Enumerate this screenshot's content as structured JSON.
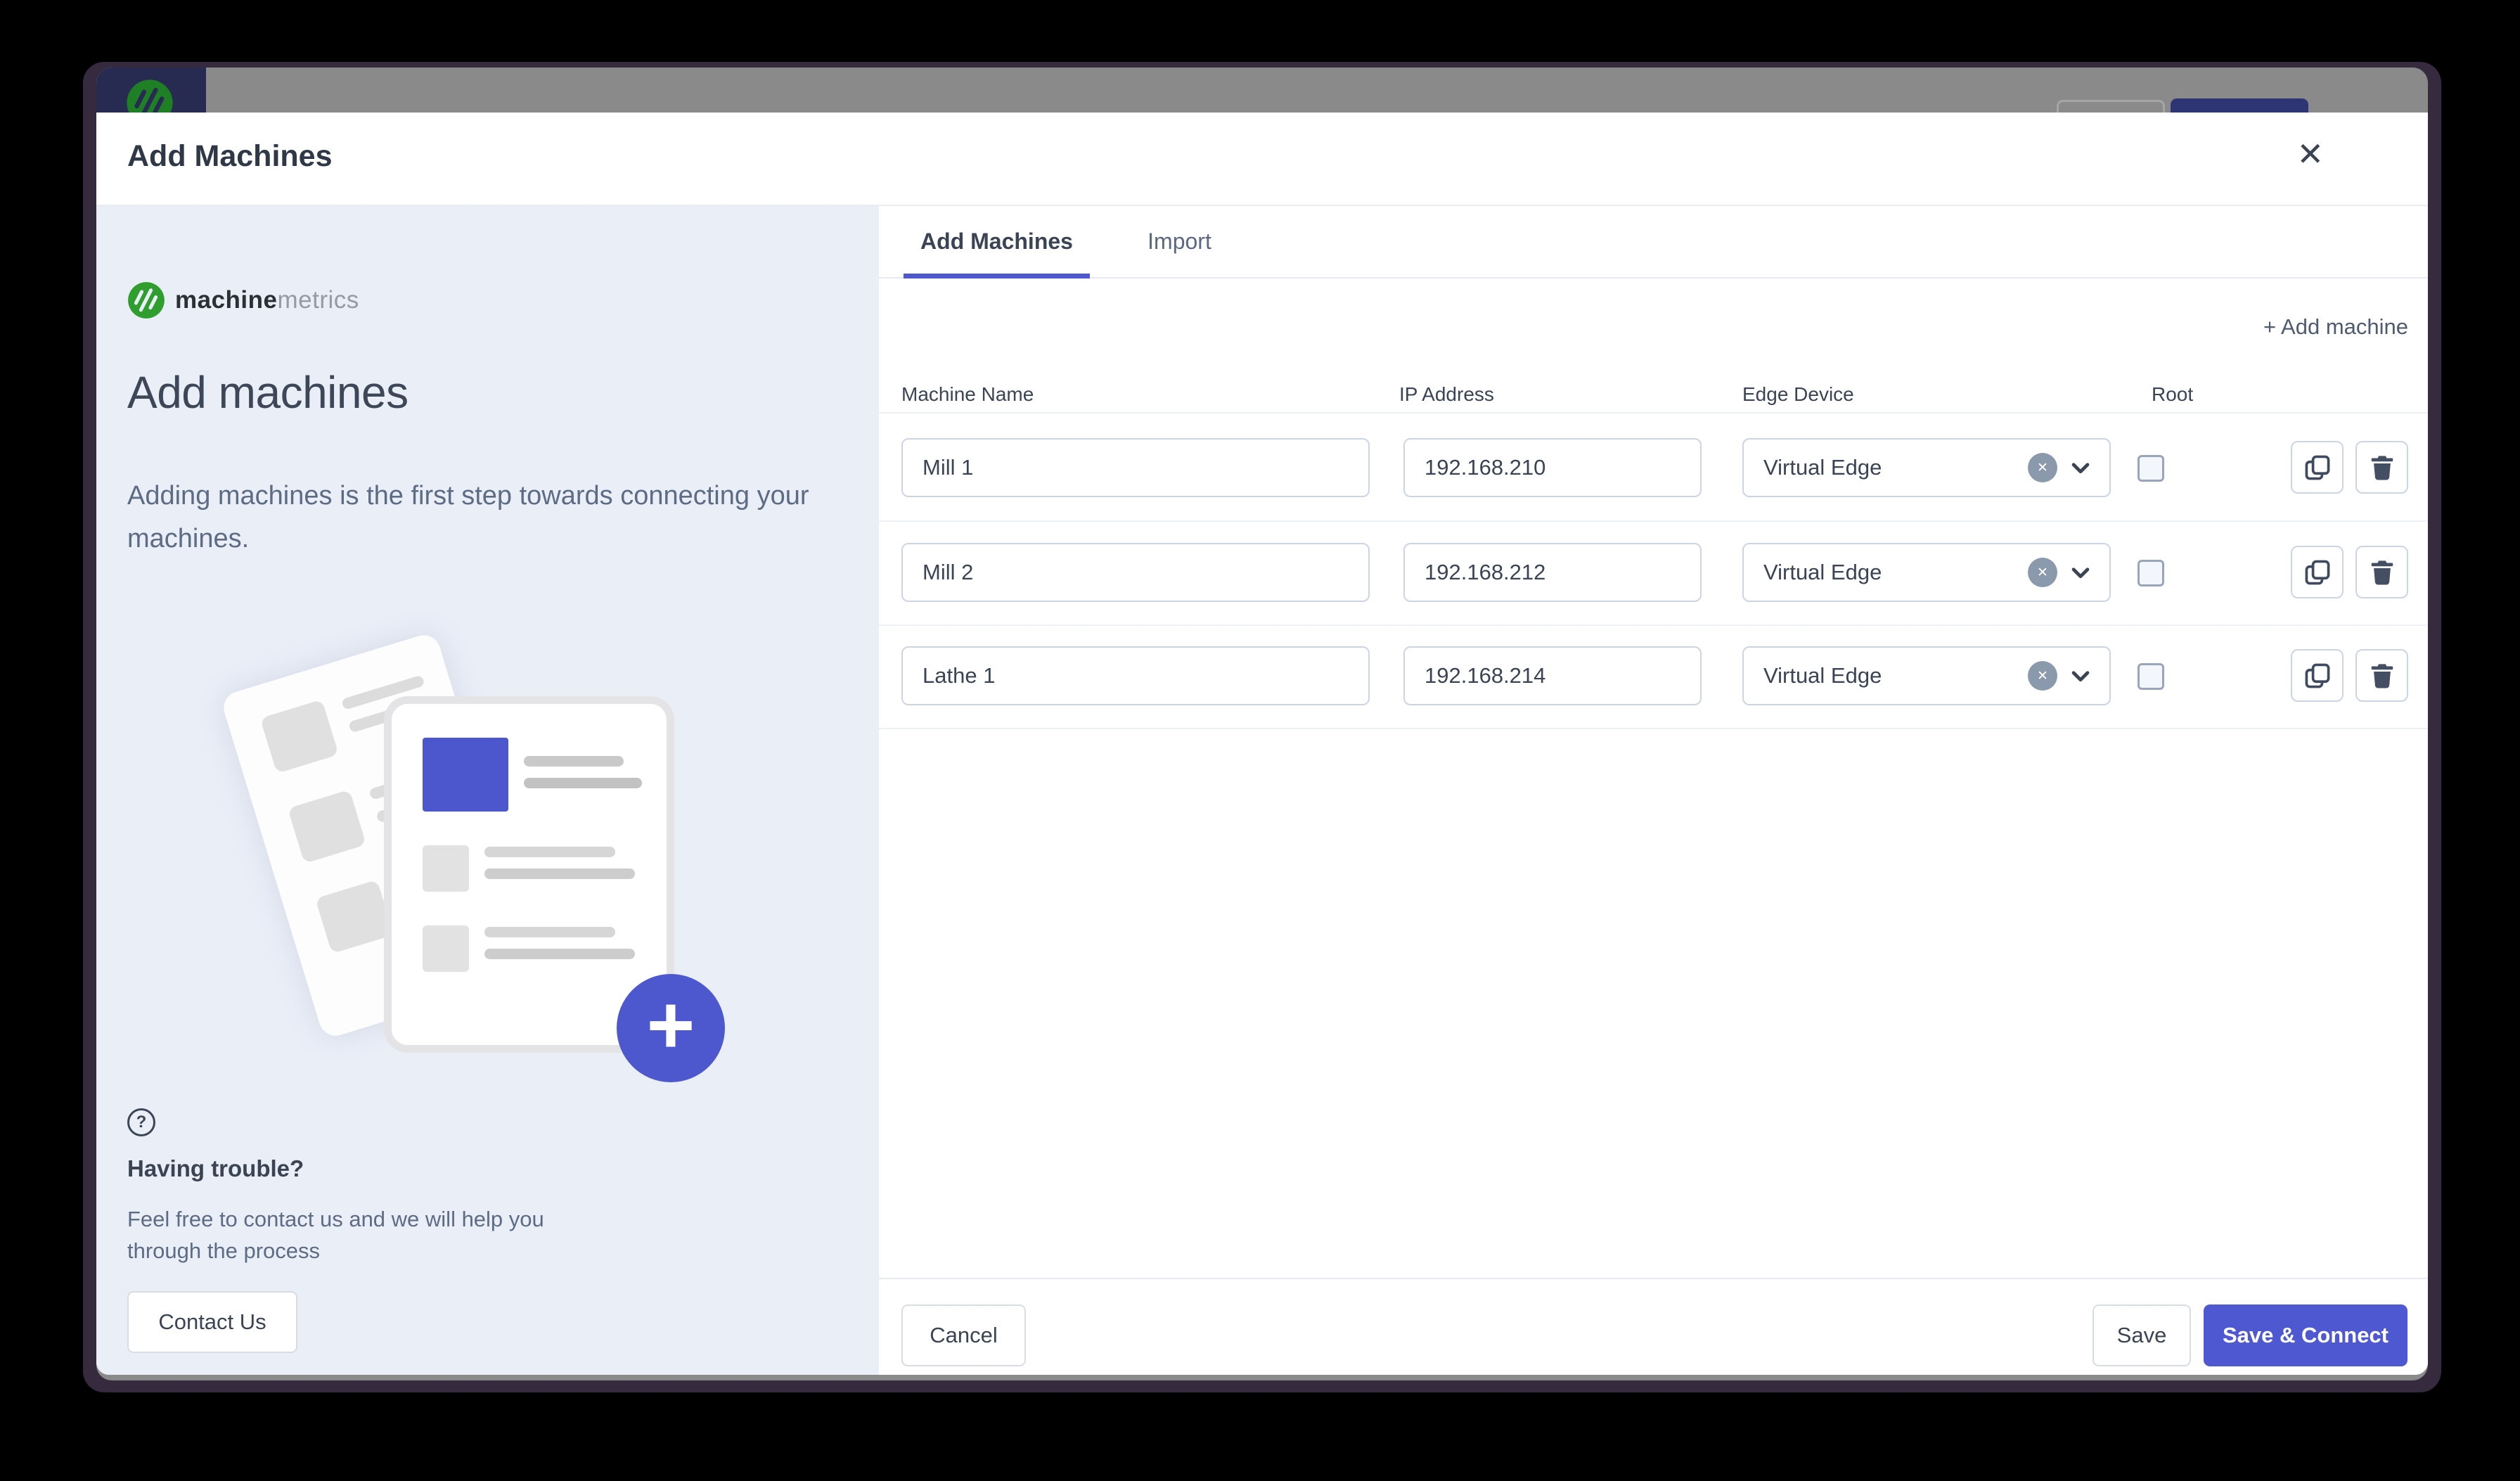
{
  "modal": {
    "title": "Add Machines",
    "close_glyph": "✕"
  },
  "left_panel": {
    "brand_bold": "machine",
    "brand_light": "metrics",
    "heading": "Add machines",
    "description": "Adding machines is the first step towards connecting your machines.",
    "help_glyph": "?",
    "help_title": "Having trouble?",
    "help_text": "Feel free to contact us and we will help you through the process",
    "contact_label": "Contact Us"
  },
  "tabs": [
    {
      "label": "Add Machines",
      "active": true
    },
    {
      "label": "Import",
      "active": false
    }
  ],
  "toolbar": {
    "add_machine_label": "+ Add machine"
  },
  "table": {
    "headers": [
      "Machine Name",
      "IP Address",
      "Edge Device",
      "Root"
    ],
    "rows": [
      {
        "machine_name": "Mill 1",
        "ip_address": "192.168.210",
        "edge_device": "Virtual Edge",
        "root_checked": false
      },
      {
        "machine_name": "Mill 2",
        "ip_address": "192.168.212",
        "edge_device": "Virtual Edge",
        "root_checked": false
      },
      {
        "machine_name": "Lathe 1",
        "ip_address": "192.168.214",
        "edge_device": "Virtual Edge",
        "root_checked": false
      }
    ]
  },
  "footer": {
    "cancel_label": "Cancel",
    "save_label": "Save",
    "save_connect_label": "Save & Connect"
  },
  "icons": {
    "clear_glyph": "✕",
    "plus_glyph": "+"
  },
  "colors": {
    "accent_indigo": "#4d58cf",
    "backdrop_navy": "#2e3574",
    "logo_navy_square": "#272b52",
    "left_panel_bg": "#e9eef7",
    "logo_green": "#2f9e2f",
    "text_slate": "#3a4454",
    "text_muted": "#5d6c85",
    "input_border": "#ccd5e4",
    "window_frame": "#352a3e"
  }
}
